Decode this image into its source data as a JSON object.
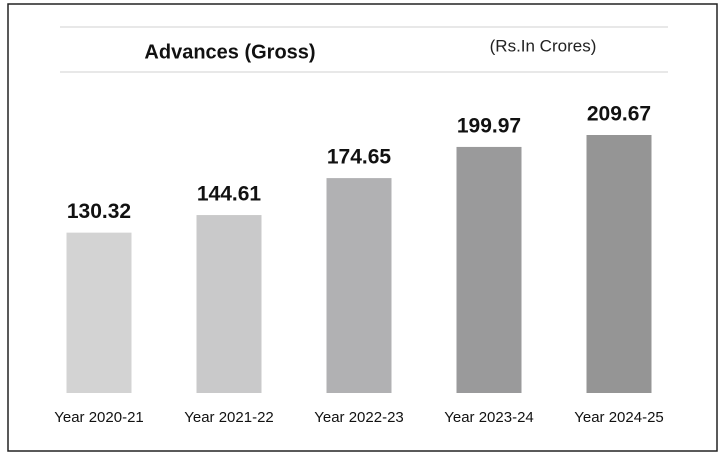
{
  "chart_data": {
    "type": "bar",
    "title": "Advances (Gross)",
    "subtitle": "(Rs.In Crores)",
    "categories": [
      "Year 2020-21",
      "Year 2021-22",
      "Year 2022-23",
      "Year 2023-24",
      "Year 2024-25"
    ],
    "values": [
      130.32,
      144.61,
      174.65,
      199.97,
      209.67
    ],
    "colors": [
      "#d3d3d3",
      "#c9c9ca",
      "#b1b1b3",
      "#9a9a9b",
      "#959595"
    ]
  }
}
